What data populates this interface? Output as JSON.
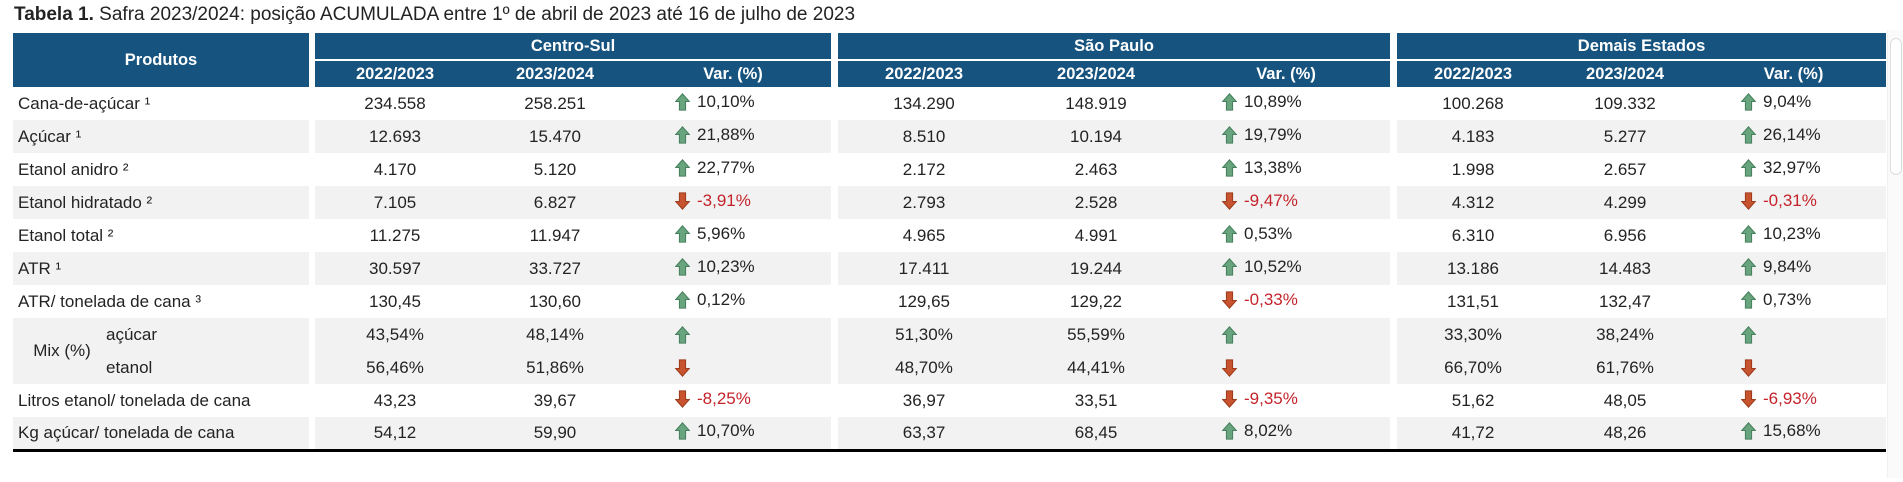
{
  "title": {
    "bold": "Tabela 1.",
    "rest": " Safra 2023/2024: posição ACUMULADA entre 1º de abril de 2023 até 16 de julho de 2023"
  },
  "colors": {
    "header_bg": "#17537F",
    "row_alt": "#F2F2F2",
    "body_text": "#232323",
    "up_green": "#68A57E",
    "up_green_border": "#47805D",
    "down_red": "#C8532F",
    "down_red_border": "#9E3C1C",
    "negative_text": "#C3242B"
  },
  "icons": {
    "up": "arrow-up-icon",
    "down": "arrow-down-icon"
  },
  "table": {
    "products_header": "Produtos",
    "groups": [
      {
        "name": "Centro-Sul",
        "columns": [
          "2022/2023",
          "2023/2024",
          "Var. (%)"
        ]
      },
      {
        "name": "São Paulo",
        "columns": [
          "2022/2023",
          "2023/2024",
          "Var. (%)"
        ]
      },
      {
        "name": "Demais Estados",
        "columns": [
          "2022/2023",
          "2023/2024",
          "Var. (%)"
        ]
      }
    ],
    "rows": [
      {
        "product": "Cana-de-açúcar ¹",
        "shade": false,
        "cells": [
          [
            "234.558",
            "258.251",
            "10,10%",
            "up"
          ],
          [
            "134.290",
            "148.919",
            "10,89%",
            "up"
          ],
          [
            "100.268",
            "109.332",
            "9,04%",
            "up"
          ]
        ]
      },
      {
        "product": "Açúcar ¹",
        "shade": true,
        "cells": [
          [
            "12.693",
            "15.470",
            "21,88%",
            "up"
          ],
          [
            "8.510",
            "10.194",
            "19,79%",
            "up"
          ],
          [
            "4.183",
            "5.277",
            "26,14%",
            "up"
          ]
        ]
      },
      {
        "product": "Etanol anidro ²",
        "shade": false,
        "cells": [
          [
            "4.170",
            "5.120",
            "22,77%",
            "up"
          ],
          [
            "2.172",
            "2.463",
            "13,38%",
            "up"
          ],
          [
            "1.998",
            "2.657",
            "32,97%",
            "up"
          ]
        ]
      },
      {
        "product": "Etanol hidratado ²",
        "shade": true,
        "cells": [
          [
            "7.105",
            "6.827",
            "-3,91%",
            "down"
          ],
          [
            "2.793",
            "2.528",
            "-9,47%",
            "down"
          ],
          [
            "4.312",
            "4.299",
            "-0,31%",
            "down"
          ]
        ]
      },
      {
        "product": "Etanol total ²",
        "shade": false,
        "cells": [
          [
            "11.275",
            "11.947",
            "5,96%",
            "up"
          ],
          [
            "4.965",
            "4.991",
            "0,53%",
            "up"
          ],
          [
            "6.310",
            "6.956",
            "10,23%",
            "up"
          ]
        ]
      },
      {
        "product": "ATR ¹",
        "shade": true,
        "cells": [
          [
            "30.597",
            "33.727",
            "10,23%",
            "up"
          ],
          [
            "17.411",
            "19.244",
            "10,52%",
            "up"
          ],
          [
            "13.186",
            "14.483",
            "9,84%",
            "up"
          ]
        ]
      },
      {
        "product": "ATR/ tonelada de cana ³",
        "shade": false,
        "cells": [
          [
            "130,45",
            "130,60",
            "0,12%",
            "up"
          ],
          [
            "129,65",
            "129,22",
            "-0,33%",
            "down"
          ],
          [
            "131,51",
            "132,47",
            "0,73%",
            "up"
          ]
        ]
      },
      {
        "type": "mix",
        "label": "Mix (%)",
        "shade": true,
        "lines": [
          {
            "product": "açúcar",
            "cells": [
              [
                "43,54%",
                "48,14%",
                "",
                "up"
              ],
              [
                "51,30%",
                "55,59%",
                "",
                "up"
              ],
              [
                "33,30%",
                "38,24%",
                "",
                "up"
              ]
            ]
          },
          {
            "product": "etanol",
            "cells": [
              [
                "56,46%",
                "51,86%",
                "",
                "down"
              ],
              [
                "48,70%",
                "44,41%",
                "",
                "down"
              ],
              [
                "66,70%",
                "61,76%",
                "",
                "down"
              ]
            ]
          }
        ]
      },
      {
        "product": "Litros etanol/ tonelada de cana",
        "shade": false,
        "cells": [
          [
            "43,23",
            "39,67",
            "-8,25%",
            "down"
          ],
          [
            "36,97",
            "33,51",
            "-9,35%",
            "down"
          ],
          [
            "51,62",
            "48,05",
            "-6,93%",
            "down"
          ]
        ]
      },
      {
        "product": "Kg açúcar/ tonelada de cana",
        "shade": true,
        "cells": [
          [
            "54,12",
            "59,90",
            "10,70%",
            "up"
          ],
          [
            "63,37",
            "68,45",
            "8,02%",
            "up"
          ],
          [
            "41,72",
            "48,26",
            "15,68%",
            "up"
          ]
        ]
      }
    ]
  }
}
